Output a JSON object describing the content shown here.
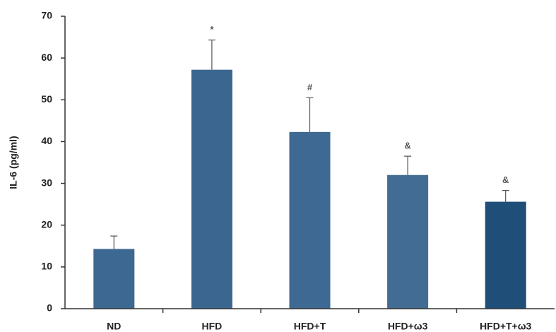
{
  "chart_data": {
    "type": "bar",
    "categories": [
      "ND",
      "HFD",
      "HFD+T",
      "HFD+ω3",
      "HFD+T+ω3"
    ],
    "values": [
      14.3,
      57.2,
      42.3,
      32.0,
      25.6
    ],
    "errors": [
      3.1,
      7.1,
      8.2,
      4.5,
      2.7
    ],
    "annotations": [
      null,
      "*",
      "#",
      "&",
      "&"
    ],
    "colors": [
      "#3d6891",
      "#3b6690",
      "#3e6992",
      "#426c94",
      "#1f4e79"
    ],
    "y_label": "IL-6 (pg/ml)",
    "ylim": [
      0,
      70
    ],
    "yticks": [
      0,
      10,
      20,
      30,
      40,
      50,
      60,
      70
    ]
  }
}
